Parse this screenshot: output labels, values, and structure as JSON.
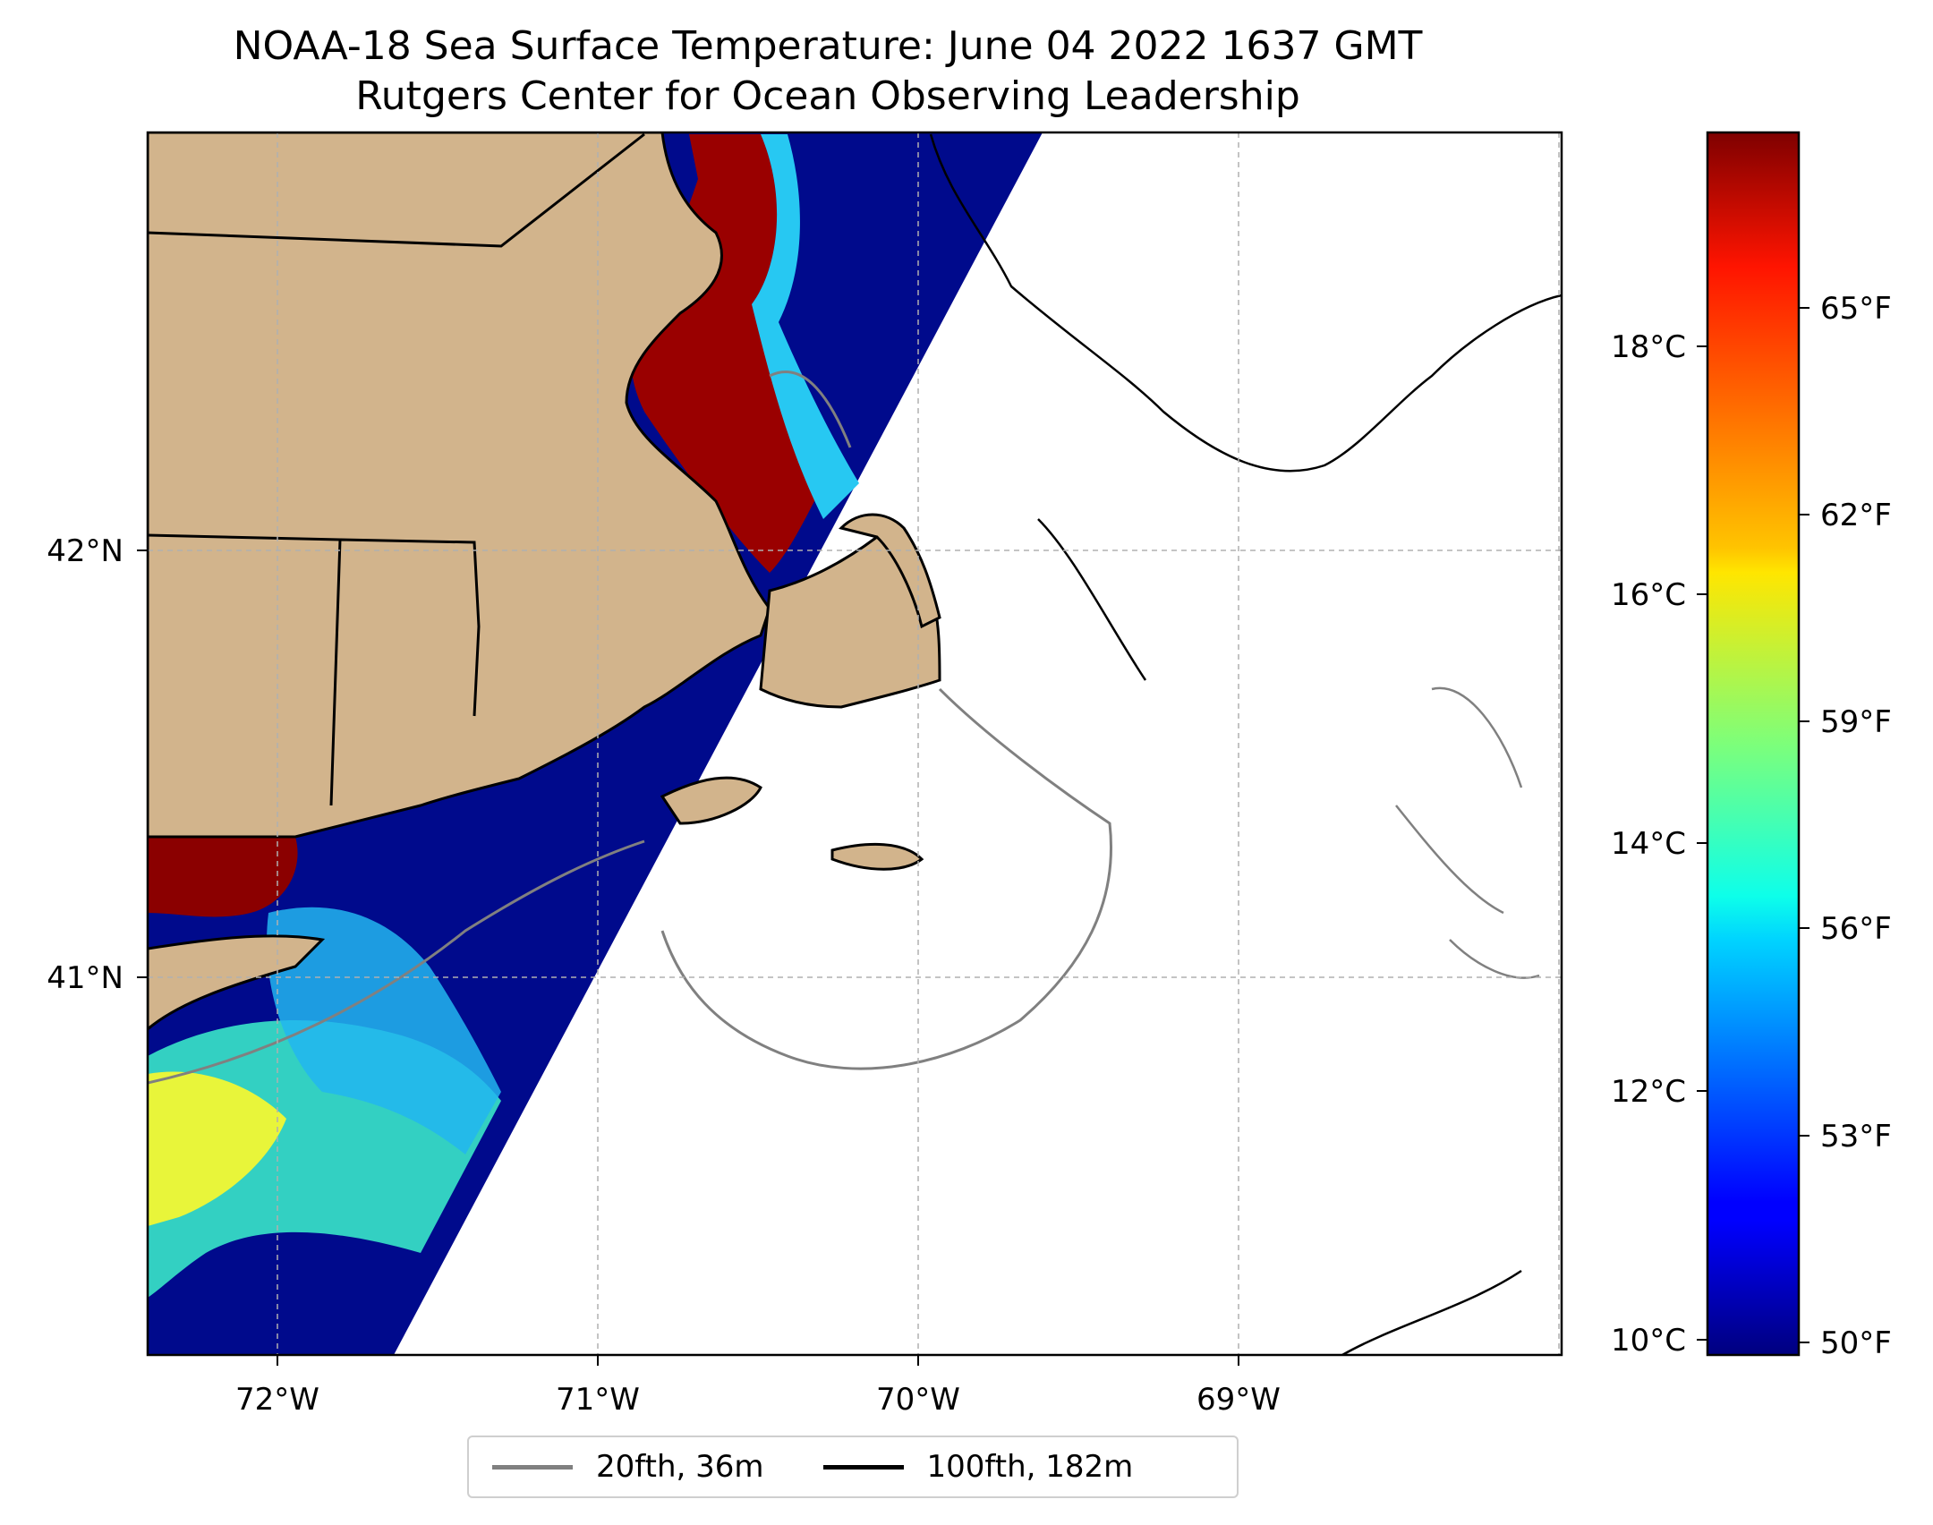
{
  "title": "NOAA-18 Sea Surface Temperature: June 04 2022 1637 GMT",
  "subtitle": "Rutgers Center for Ocean Observing Leadership",
  "map": {
    "lon_ticks": [
      "72°W",
      "71°W",
      "70°W",
      "69°W"
    ],
    "lat_ticks": [
      "42°N",
      "41°N"
    ],
    "gridlines": true,
    "land_color": "#d2b48c",
    "coastline_color": "#000000",
    "no_data_color": "#ffffff"
  },
  "colorbar": {
    "colormap": "jet",
    "celsius_ticks": [
      "10°C",
      "12°C",
      "14°C",
      "16°C",
      "18°C"
    ],
    "fahrenheit_ticks": [
      "50°F",
      "53°F",
      "56°F",
      "59°F",
      "62°F",
      "65°F"
    ]
  },
  "legend": {
    "items": [
      {
        "label": "20fth, 36m",
        "color": "#808080"
      },
      {
        "label": "100fth, 182m",
        "color": "#000000"
      }
    ],
    "position": "bottom-center"
  }
}
